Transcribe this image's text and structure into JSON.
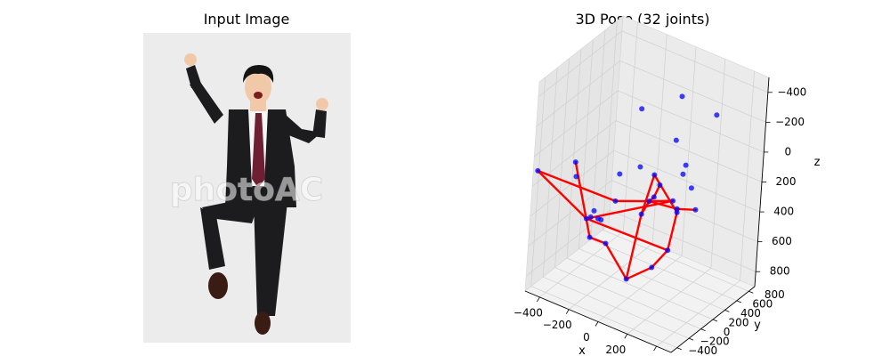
{
  "left_panel": {
    "title": "Input Image",
    "watermark": "photoAC",
    "colors": {
      "background": "#ececec",
      "suit": "#1c1c1e",
      "shirt": "#f7f7f7",
      "tie": "#6e1f33",
      "skin": "#f1c9a8",
      "hair": "#141414",
      "shoes": "#3a1c14"
    }
  },
  "chart_data": {
    "type": "scatter",
    "projection": "3d",
    "title": "3D Pose (32 joints)",
    "xlabel": "x",
    "ylabel": "y",
    "zlabel": "z",
    "xlim": [
      -500,
      500
    ],
    "ylim": [
      -500,
      900
    ],
    "zlim": [
      -500,
      900
    ],
    "z_inverted": true,
    "xticks": [
      -400,
      -200,
      0,
      200,
      400
    ],
    "yticks": [
      -400,
      -200,
      0,
      200,
      400,
      600,
      800
    ],
    "zticks": [
      -400,
      -200,
      0,
      200,
      400,
      600,
      800
    ],
    "grid": true,
    "point_color": "#0000ff",
    "bone_color": "#ff0000",
    "joints": [
      [
        -20,
        0,
        780
      ],
      [
        140,
        10,
        640
      ],
      [
        250,
        -20,
        470
      ],
      [
        310,
        -60,
        180
      ],
      [
        -170,
        -10,
        600
      ],
      [
        -260,
        -60,
        580
      ],
      [
        -380,
        -80,
        120
      ],
      [
        40,
        30,
        330
      ],
      [
        90,
        20,
        220
      ],
      [
        120,
        20,
        180
      ],
      [
        150,
        30,
        90
      ],
      [
        290,
        -10,
        180
      ],
      [
        410,
        0,
        140
      ],
      [
        210,
        120,
        200
      ],
      [
        -260,
        -140,
        430
      ],
      [
        -30,
        -260,
        180
      ],
      [
        -500,
        -420,
        120
      ],
      [
        60,
        160,
        100
      ],
      [
        -140,
        -200,
        370
      ],
      [
        -210,
        -200,
        380
      ],
      [
        -190,
        -200,
        330
      ],
      [
        -160,
        -200,
        370
      ],
      [
        160,
        400,
        130
      ],
      [
        260,
        300,
        150
      ],
      [
        100,
        450,
        -350
      ],
      [
        320,
        500,
        -300
      ],
      [
        -50,
        150,
        -300
      ],
      [
        250,
        0,
        -260
      ],
      [
        -400,
        0,
        250
      ],
      [
        -100,
        -30,
        100
      ],
      [
        0,
        60,
        40
      ],
      [
        250,
        200,
        -30
      ]
    ],
    "bones": [
      [
        0,
        1
      ],
      [
        1,
        2
      ],
      [
        2,
        3
      ],
      [
        0,
        4
      ],
      [
        4,
        5
      ],
      [
        5,
        6
      ],
      [
        0,
        7
      ],
      [
        7,
        8
      ],
      [
        8,
        9
      ],
      [
        9,
        10
      ],
      [
        8,
        11
      ],
      [
        11,
        12
      ],
      [
        8,
        13
      ],
      [
        13,
        14
      ],
      [
        14,
        16
      ],
      [
        16,
        15
      ],
      [
        15,
        8
      ],
      [
        7,
        17
      ],
      [
        17,
        3
      ],
      [
        2,
        14
      ]
    ]
  }
}
